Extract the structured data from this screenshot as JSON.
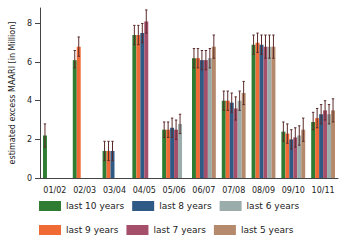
{
  "chart_data": {
    "type": "bar",
    "y_label": "estimated excess MAARI [in Million]",
    "categories": [
      "01/02",
      "02/03",
      "03/04",
      "04/05",
      "05/06",
      "06/07",
      "07/08",
      "08/09",
      "09/10",
      "10/11"
    ],
    "ylim": [
      0,
      8.8
    ],
    "yticks": [
      0,
      2,
      4,
      6,
      8
    ],
    "grid": false,
    "legend": "bottom",
    "series": [
      {
        "name": "last 10 years",
        "color": "#2f7d32",
        "values": [
          2.2,
          6.1,
          1.4,
          7.4,
          2.5,
          6.2,
          4.0,
          6.9,
          2.4,
          2.9
        ],
        "error_low": [
          1.6,
          5.7,
          0.9,
          6.9,
          2.1,
          5.7,
          3.5,
          6.4,
          1.9,
          2.5
        ],
        "error_high": [
          2.8,
          6.6,
          1.9,
          7.9,
          2.9,
          6.7,
          4.5,
          7.4,
          2.9,
          3.4
        ]
      },
      {
        "name": "last 9 years",
        "color": "#f06a35",
        "values": [
          null,
          6.8,
          1.4,
          7.4,
          2.5,
          6.2,
          4.0,
          7.0,
          2.3,
          3.1
        ],
        "error_low": [
          null,
          6.3,
          0.9,
          6.9,
          2.1,
          5.7,
          3.5,
          6.5,
          1.8,
          2.6
        ],
        "error_high": [
          null,
          7.3,
          1.9,
          7.9,
          2.9,
          6.7,
          4.5,
          7.5,
          2.8,
          3.6
        ]
      },
      {
        "name": "last 8 years",
        "color": "#2e5a85",
        "values": [
          null,
          null,
          1.4,
          7.5,
          2.6,
          6.1,
          3.9,
          6.9,
          2.0,
          3.3
        ],
        "error_low": [
          null,
          null,
          0.9,
          7.0,
          2.1,
          5.6,
          3.4,
          6.4,
          1.5,
          2.8
        ],
        "error_high": [
          null,
          null,
          1.9,
          8.0,
          3.1,
          6.6,
          4.4,
          7.4,
          2.5,
          3.8
        ]
      },
      {
        "name": "last 7 years",
        "color": "#a64f6a",
        "values": [
          null,
          null,
          null,
          8.1,
          2.5,
          6.1,
          3.6,
          6.8,
          2.1,
          3.5
        ],
        "error_low": [
          null,
          null,
          null,
          7.5,
          2.0,
          5.6,
          3.0,
          6.2,
          1.6,
          3.0
        ],
        "error_high": [
          null,
          null,
          null,
          8.7,
          3.0,
          6.6,
          4.2,
          7.4,
          2.6,
          4.0
        ]
      },
      {
        "name": "last 6 years",
        "color": "#9badaa",
        "values": [
          null,
          null,
          null,
          null,
          2.8,
          6.2,
          4.0,
          6.8,
          2.2,
          3.3
        ],
        "error_low": [
          null,
          null,
          null,
          null,
          2.3,
          5.7,
          3.5,
          6.2,
          1.7,
          2.8
        ],
        "error_high": [
          null,
          null,
          null,
          null,
          3.3,
          6.7,
          4.5,
          7.4,
          2.7,
          3.8
        ]
      },
      {
        "name": "last 5 years",
        "color": "#b5896b",
        "values": [
          null,
          null,
          null,
          null,
          null,
          6.8,
          4.4,
          6.8,
          2.5,
          3.5
        ],
        "error_low": [
          null,
          null,
          null,
          null,
          null,
          6.2,
          3.8,
          6.2,
          1.9,
          2.9
        ],
        "error_high": [
          null,
          null,
          null,
          null,
          null,
          7.4,
          5.0,
          7.4,
          3.1,
          4.1
        ]
      }
    ]
  }
}
